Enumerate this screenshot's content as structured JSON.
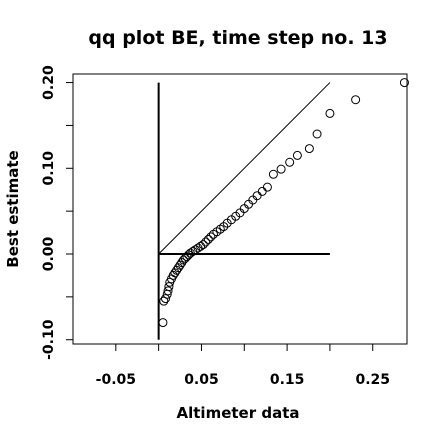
{
  "chart_data": {
    "type": "scatter",
    "title": "qq plot BE, time step no. 13",
    "xlabel": "Altimeter data",
    "ylabel": "Best estimate",
    "xlim": [
      -0.1,
      0.29
    ],
    "ylim": [
      -0.105,
      0.21
    ],
    "x_ticks": [
      -0.05,
      0.05,
      0.15,
      0.25
    ],
    "x_tick_labels": [
      "-0.05",
      "0.05",
      "0.15",
      "0.25"
    ],
    "x_minor_ticks": [
      0.0,
      0.1,
      0.2
    ],
    "y_ticks": [
      -0.1,
      0.0,
      0.1,
      0.2
    ],
    "y_tick_labels": [
      "-0.10",
      "0.00",
      "0.10",
      "0.20"
    ],
    "y_minor_ticks": [
      -0.05,
      0.05,
      0.15
    ],
    "grid": false,
    "reference_lines": {
      "identity": [
        [
          0.0,
          0.0
        ],
        [
          0.2,
          0.2
        ]
      ],
      "horizontal_zero": [
        [
          0.0,
          0.0
        ],
        [
          0.2,
          0.0
        ]
      ],
      "vertical_zero": [
        [
          0.0,
          -0.1
        ],
        [
          0.0,
          0.2
        ]
      ]
    },
    "points": [
      [
        0.005,
        -0.08
      ],
      [
        0.006,
        -0.055
      ],
      [
        0.008,
        -0.052
      ],
      [
        0.01,
        -0.047
      ],
      [
        0.011,
        -0.043
      ],
      [
        0.012,
        -0.038
      ],
      [
        0.013,
        -0.033
      ],
      [
        0.015,
        -0.029
      ],
      [
        0.017,
        -0.025
      ],
      [
        0.019,
        -0.022
      ],
      [
        0.021,
        -0.019
      ],
      [
        0.023,
        -0.016
      ],
      [
        0.025,
        -0.013
      ],
      [
        0.027,
        -0.01
      ],
      [
        0.029,
        -0.007
      ],
      [
        0.031,
        -0.005
      ],
      [
        0.033,
        -0.003
      ],
      [
        0.035,
        -0.001
      ],
      [
        0.037,
        0.001
      ],
      [
        0.04,
        0.003
      ],
      [
        0.043,
        0.005
      ],
      [
        0.046,
        0.007
      ],
      [
        0.049,
        0.009
      ],
      [
        0.052,
        0.011
      ],
      [
        0.055,
        0.014
      ],
      [
        0.058,
        0.017
      ],
      [
        0.061,
        0.02
      ],
      [
        0.064,
        0.023
      ],
      [
        0.068,
        0.026
      ],
      [
        0.072,
        0.029
      ],
      [
        0.076,
        0.032
      ],
      [
        0.08,
        0.036
      ],
      [
        0.085,
        0.04
      ],
      [
        0.09,
        0.044
      ],
      [
        0.095,
        0.048
      ],
      [
        0.1,
        0.053
      ],
      [
        0.105,
        0.058
      ],
      [
        0.11,
        0.063
      ],
      [
        0.115,
        0.068
      ],
      [
        0.121,
        0.073
      ],
      [
        0.127,
        0.078
      ],
      [
        0.134,
        0.093
      ],
      [
        0.143,
        0.099
      ],
      [
        0.153,
        0.107
      ],
      [
        0.162,
        0.115
      ],
      [
        0.176,
        0.123
      ],
      [
        0.185,
        0.14
      ],
      [
        0.2,
        0.164
      ],
      [
        0.23,
        0.18
      ],
      [
        0.287,
        0.2
      ]
    ]
  }
}
